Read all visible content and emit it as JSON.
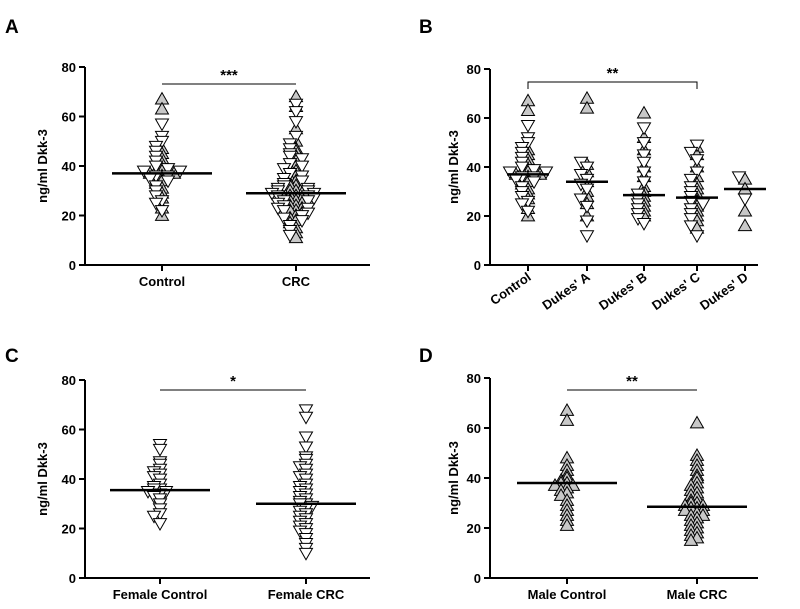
{
  "figure": {
    "panels": [
      "A",
      "B",
      "C",
      "D"
    ]
  },
  "chart_data": [
    {
      "panel": "A",
      "type": "scatter",
      "ylabel": "ng/ml Dkk-3",
      "ylim": [
        0,
        80
      ],
      "yticks": [
        0,
        20,
        40,
        60,
        80
      ],
      "categories": [
        "Control",
        "CRC"
      ],
      "medians": [
        37,
        29
      ],
      "significance": [
        {
          "from": 0,
          "to": 1,
          "label": "***"
        }
      ],
      "groups": [
        {
          "name": "Control",
          "up": [
            67,
            63,
            47,
            45,
            43,
            41,
            39,
            38,
            38,
            37,
            37,
            37,
            36,
            34,
            33,
            31,
            29,
            27,
            23,
            20
          ],
          "down": [
            57,
            52,
            50,
            48,
            46,
            44,
            42,
            40,
            39,
            38,
            38,
            36,
            36,
            35,
            34,
            32,
            30,
            28,
            26,
            25,
            22
          ]
        },
        {
          "name": "CRC",
          "up": [
            68,
            64,
            55,
            50,
            47,
            46,
            44,
            42,
            40,
            39,
            38,
            36,
            35,
            34,
            33,
            32,
            32,
            31,
            30,
            30,
            29,
            29,
            28,
            28,
            27,
            27,
            26,
            26,
            25,
            24,
            24,
            23,
            22,
            22,
            21,
            20,
            19,
            18,
            17,
            15,
            13,
            11
          ],
          "down": [
            65,
            62,
            58,
            52,
            49,
            47,
            45,
            44,
            43,
            41,
            40,
            39,
            37,
            36,
            35,
            34,
            33,
            32,
            31,
            31,
            30,
            30,
            29,
            29,
            28,
            28,
            27,
            26,
            26,
            25,
            24,
            23,
            23,
            22,
            21,
            20,
            19,
            18,
            16,
            14,
            12
          ]
        }
      ]
    },
    {
      "panel": "B",
      "type": "scatter",
      "ylabel": "ng/ml Dkk-3",
      "ylim": [
        0,
        80
      ],
      "yticks": [
        0,
        20,
        40,
        60,
        80
      ],
      "categories": [
        "Control",
        "Dukes' A",
        "Dukes' B",
        "Dukes' C",
        "Dukes' D"
      ],
      "medians": [
        37,
        34,
        28.5,
        27.5,
        31
      ],
      "significance": [
        {
          "from": 0,
          "to": 3,
          "label": "**"
        }
      ],
      "groups": [
        {
          "name": "Control",
          "up": [
            67,
            63,
            47,
            45,
            43,
            41,
            39,
            38,
            38,
            37,
            37,
            37,
            36,
            34,
            33,
            31,
            29,
            27,
            23,
            20
          ],
          "down": [
            57,
            52,
            50,
            48,
            46,
            44,
            42,
            40,
            39,
            38,
            38,
            36,
            36,
            35,
            34,
            32,
            30,
            28,
            26,
            25,
            22
          ]
        },
        {
          "name": "Dukes' A",
          "up": [
            68,
            64,
            41,
            38,
            34,
            30,
            28,
            25,
            20
          ],
          "down": [
            42,
            40,
            37,
            35,
            33,
            31,
            27,
            24,
            18,
            12
          ]
        },
        {
          "name": "Dukes' B",
          "up": [
            62,
            52,
            47,
            40,
            36,
            32,
            30,
            28,
            26,
            24,
            22,
            20
          ],
          "down": [
            56,
            50,
            45,
            42,
            38,
            34,
            29,
            27,
            25,
            23,
            21,
            19,
            17
          ]
        },
        {
          "name": "Dukes' C",
          "up": [
            48,
            45,
            40,
            36,
            33,
            31,
            29,
            27,
            26,
            24,
            22,
            20,
            18,
            15
          ],
          "down": [
            49,
            46,
            43,
            38,
            35,
            32,
            30,
            28,
            26,
            25,
            23,
            21,
            19,
            16,
            12
          ]
        },
        {
          "name": "Dukes' D",
          "up": [
            35,
            31,
            22,
            16
          ],
          "down": [
            36,
            27
          ]
        }
      ]
    },
    {
      "panel": "C",
      "type": "scatter",
      "ylabel": "ng/ml Dkk-3",
      "ylim": [
        0,
        80
      ],
      "yticks": [
        0,
        20,
        40,
        60,
        80
      ],
      "categories": [
        "Female Control",
        "Female CRC"
      ],
      "medians": [
        35.5,
        30
      ],
      "significance": [
        {
          "from": 0,
          "to": 1,
          "label": "*"
        }
      ],
      "groups": [
        {
          "name": "Female Control",
          "up": [],
          "down": [
            54,
            52,
            47,
            46,
            44,
            43,
            42,
            41,
            40,
            38,
            37,
            36,
            36,
            35,
            35,
            34,
            33,
            32,
            30,
            28,
            26,
            25,
            22
          ]
        },
        {
          "name": "Female CRC",
          "up": [],
          "down": [
            68,
            65,
            57,
            53,
            49,
            48,
            46,
            45,
            44,
            42,
            41,
            40,
            38,
            37,
            36,
            35,
            34,
            33,
            32,
            31,
            30,
            30,
            29,
            28,
            27,
            26,
            25,
            24,
            23,
            22,
            21,
            20,
            19,
            18,
            16,
            14,
            12,
            10
          ]
        }
      ]
    },
    {
      "panel": "D",
      "type": "scatter",
      "ylabel": "ng/ml Dkk-3",
      "ylim": [
        0,
        80
      ],
      "yticks": [
        0,
        20,
        40,
        60,
        80
      ],
      "categories": [
        "Male Control",
        "Male CRC"
      ],
      "medians": [
        38,
        28.5
      ],
      "significance": [
        {
          "from": 0,
          "to": 1,
          "label": "**"
        }
      ],
      "groups": [
        {
          "name": "Male Control",
          "up": [
            67,
            63,
            48,
            45,
            43,
            41,
            40,
            39,
            38,
            38,
            37,
            37,
            36,
            35,
            34,
            33,
            31,
            29,
            27,
            25,
            23,
            21
          ],
          "down": []
        },
        {
          "name": "Male CRC",
          "up": [
            62,
            49,
            47,
            45,
            43,
            41,
            40,
            38,
            37,
            36,
            35,
            34,
            33,
            32,
            31,
            30,
            30,
            29,
            29,
            28,
            28,
            27,
            27,
            26,
            25,
            25,
            24,
            23,
            22,
            21,
            20,
            19,
            18,
            17,
            16,
            15
          ],
          "down": []
        }
      ]
    }
  ]
}
